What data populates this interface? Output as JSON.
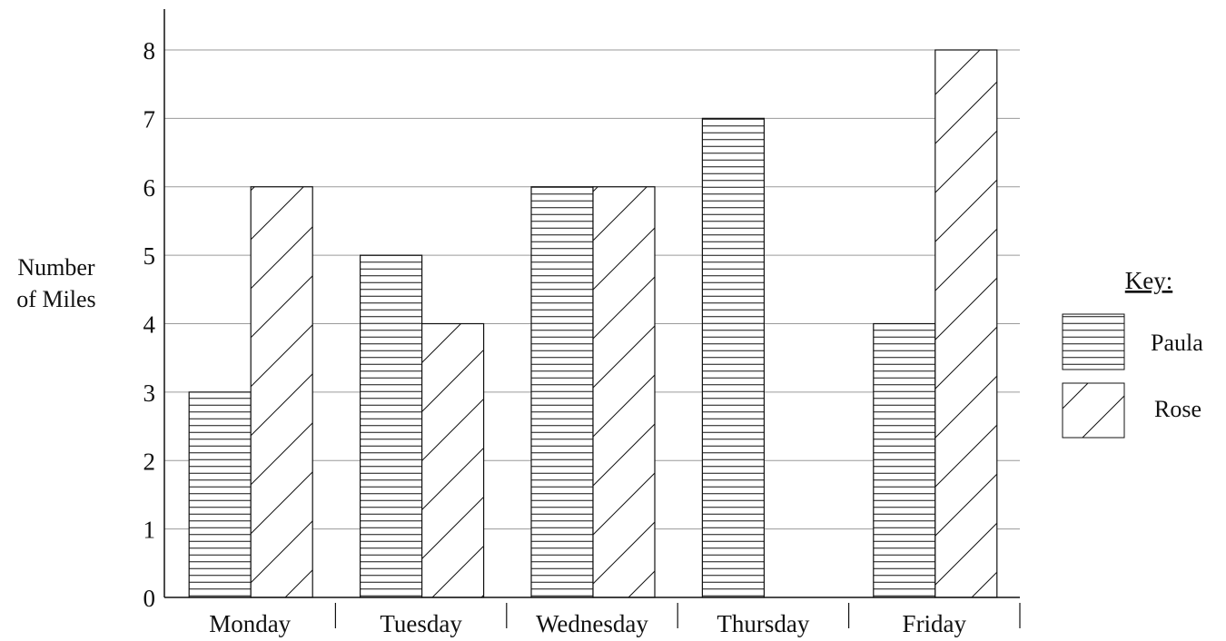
{
  "chart_data": {
    "type": "bar",
    "title": "",
    "xlabel": "",
    "ylabel": [
      "Number",
      "of Miles"
    ],
    "categories": [
      "Monday",
      "Tuesday",
      "Wednesday",
      "Thursday",
      "Friday"
    ],
    "series": [
      {
        "name": "Paula",
        "values": [
          3,
          5,
          6,
          7,
          4
        ],
        "pattern": "horizontal-lines"
      },
      {
        "name": "Rose",
        "values": [
          6,
          4,
          6,
          0,
          8
        ],
        "pattern": "diagonal-lines"
      }
    ],
    "ylim": [
      0,
      8
    ],
    "yticks": [
      "0",
      "1",
      "2",
      "3",
      "4",
      "5",
      "6",
      "7",
      "8"
    ],
    "grid": true,
    "legend": {
      "title": "Key:",
      "position": "right"
    },
    "colors": {
      "line": "#111111",
      "grid": "#9a9a9a",
      "fill": "#ffffff"
    }
  }
}
